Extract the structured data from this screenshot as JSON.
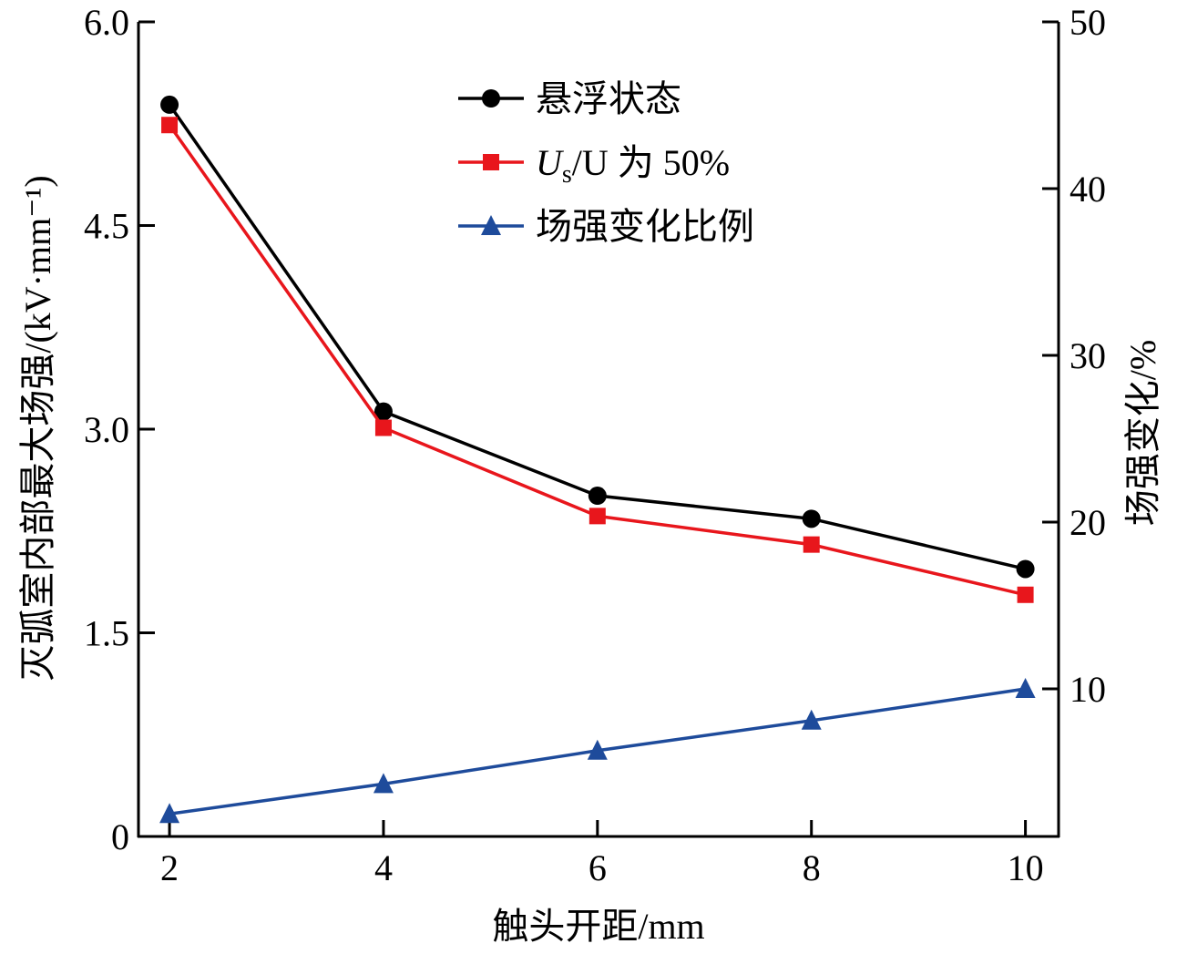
{
  "chart_data": {
    "type": "line",
    "xlabel": "触头开距/mm",
    "ylabel": "灭弧室内部最大场强/(kV·mm⁻¹)",
    "y2label": "场强变化/%",
    "x": [
      2,
      4,
      6,
      8,
      10
    ],
    "xticks": [
      "2",
      "4",
      "6",
      "8",
      "10"
    ],
    "yticks": [
      "0",
      "1.5",
      "3.0",
      "4.5",
      "6.0"
    ],
    "y2ticks": [
      "10",
      "20",
      "30",
      "40",
      "50"
    ],
    "xlim": [
      1.71,
      10.31
    ],
    "ylim": [
      0,
      6.0
    ],
    "y2lim": [
      1.15,
      50
    ],
    "grid": false,
    "legend_position": "top-center",
    "series": [
      {
        "name": "悬浮状态",
        "axis": "left",
        "marker": "circle",
        "color": "#000000",
        "values": [
          5.39,
          3.13,
          2.51,
          2.34,
          1.97
        ]
      },
      {
        "name": "Us/U 为 50%",
        "name_parts": {
          "main": "U",
          "sub": "s",
          "rest": "/U 为 50%"
        },
        "axis": "left",
        "marker": "square",
        "color": "#e8161c",
        "values": [
          5.24,
          3.01,
          2.36,
          2.15,
          1.78
        ]
      },
      {
        "name": "场强变化比例",
        "axis": "right",
        "marker": "triangle",
        "color": "#1e4b9b",
        "values": [
          2.5,
          4.3,
          6.3,
          8.1,
          10.0
        ]
      }
    ]
  }
}
